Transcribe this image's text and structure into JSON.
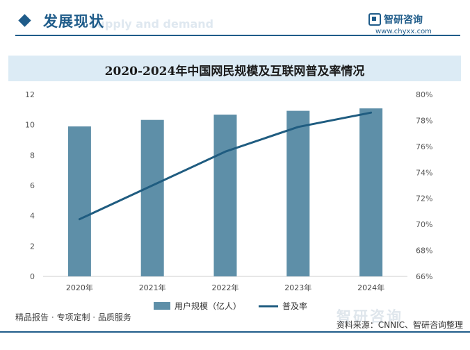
{
  "header": {
    "title": "发展现状",
    "subtitle_ghost": "Supply and demand",
    "brand_name": "智研咨询",
    "brand_url": "www.chyxx.com"
  },
  "chart_data": {
    "type": "bar",
    "title": "2020-2024年中国网民规模及互联网普及率情况",
    "categories": [
      "2020年",
      "2021年",
      "2022年",
      "2023年",
      "2024年"
    ],
    "series": [
      {
        "name": "用户规模（亿人）",
        "type": "bar",
        "axis": "left",
        "values": [
          9.89,
          10.32,
          10.67,
          10.92,
          11.08
        ],
        "color": "#5e8fa8"
      },
      {
        "name": "普及率",
        "type": "line",
        "axis": "right",
        "values": [
          70.4,
          73.0,
          75.6,
          77.5,
          78.6
        ],
        "color": "#1f5c80"
      }
    ],
    "y_left": {
      "min": 0,
      "max": 12,
      "ticks": [
        0,
        2,
        4,
        6,
        8,
        10,
        12
      ]
    },
    "y_right": {
      "min": 66,
      "max": 80,
      "ticks": [
        "66%",
        "68%",
        "70%",
        "72%",
        "74%",
        "76%",
        "78%",
        "80%"
      ]
    },
    "grid": false,
    "legend_position": "bottom"
  },
  "footer": {
    "tagline": "精品报告 · 专项定制 · 品质服务",
    "source": "资料来源：CNNIC、智研咨询整理",
    "brand_watermark": "智研咨询"
  }
}
